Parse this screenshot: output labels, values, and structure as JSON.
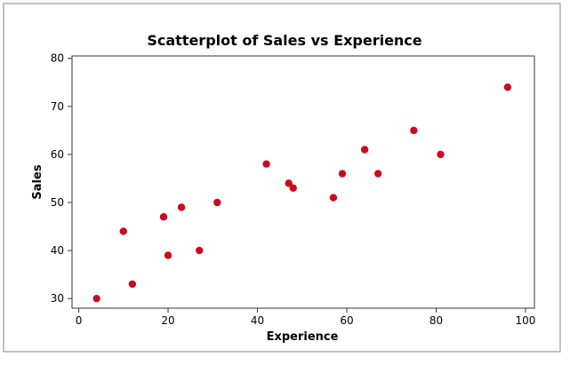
{
  "chart_data": {
    "type": "scatter",
    "title": "Scatterplot of Sales vs Experience",
    "xlabel": "Experience",
    "ylabel": "Sales",
    "xlim": [
      -1.5,
      102
    ],
    "ylim": [
      28,
      80.5
    ],
    "xticks": [
      0,
      20,
      40,
      60,
      80,
      100
    ],
    "yticks": [
      30,
      40,
      50,
      60,
      70,
      80
    ],
    "grid": false,
    "point_color": "#cc0a1e",
    "points": [
      {
        "x": 4,
        "y": 30
      },
      {
        "x": 10,
        "y": 44
      },
      {
        "x": 12,
        "y": 33
      },
      {
        "x": 19,
        "y": 47
      },
      {
        "x": 20,
        "y": 39
      },
      {
        "x": 23,
        "y": 49
      },
      {
        "x": 27,
        "y": 40
      },
      {
        "x": 31,
        "y": 50
      },
      {
        "x": 42,
        "y": 58
      },
      {
        "x": 47,
        "y": 54
      },
      {
        "x": 48,
        "y": 53
      },
      {
        "x": 57,
        "y": 51
      },
      {
        "x": 59,
        "y": 56
      },
      {
        "x": 64,
        "y": 61
      },
      {
        "x": 67,
        "y": 56
      },
      {
        "x": 75,
        "y": 65
      },
      {
        "x": 81,
        "y": 60
      },
      {
        "x": 96,
        "y": 74
      }
    ]
  }
}
